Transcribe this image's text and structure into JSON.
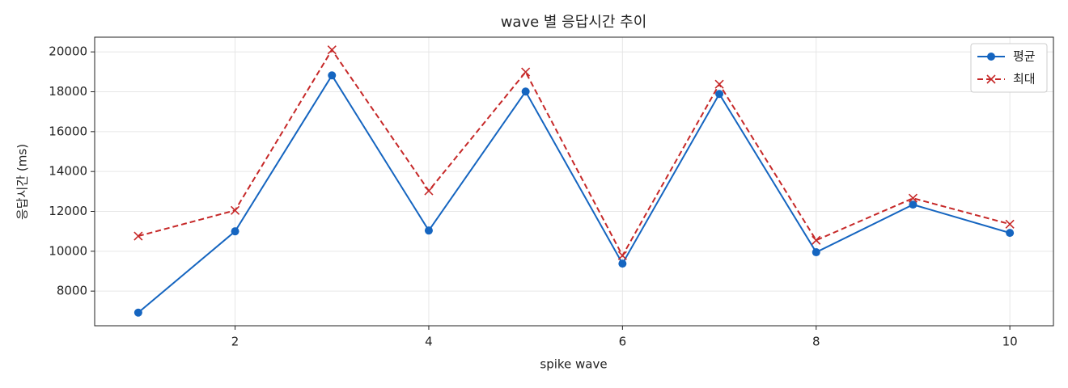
{
  "chart_data": {
    "type": "line",
    "title": "wave 별 응답시간 추이",
    "x_label": "spike wave",
    "y_label": "응답시간 (ms)",
    "x": [
      1,
      2,
      3,
      4,
      5,
      6,
      7,
      8,
      9,
      10
    ],
    "series": [
      {
        "name": "평균",
        "color": "#1565c0",
        "marker": "o",
        "linestyle": "solid",
        "values": [
          6920,
          11000,
          18820,
          11040,
          18010,
          9380,
          17890,
          9950,
          12340,
          10920
        ]
      },
      {
        "name": "최대",
        "color": "#c62828",
        "marker": "x",
        "linestyle": "dashed",
        "values": [
          10760,
          12050,
          20100,
          13030,
          18990,
          9780,
          18380,
          10550,
          12660,
          11360
        ]
      }
    ],
    "xlim": [
      0.55,
      10.45
    ],
    "ylim": [
      6262,
      20738
    ],
    "xticks": [
      2,
      4,
      6,
      8,
      10
    ],
    "yticks": [
      8000,
      10000,
      12000,
      14000,
      16000,
      18000,
      20000
    ],
    "grid": true,
    "legend": "upper right"
  }
}
